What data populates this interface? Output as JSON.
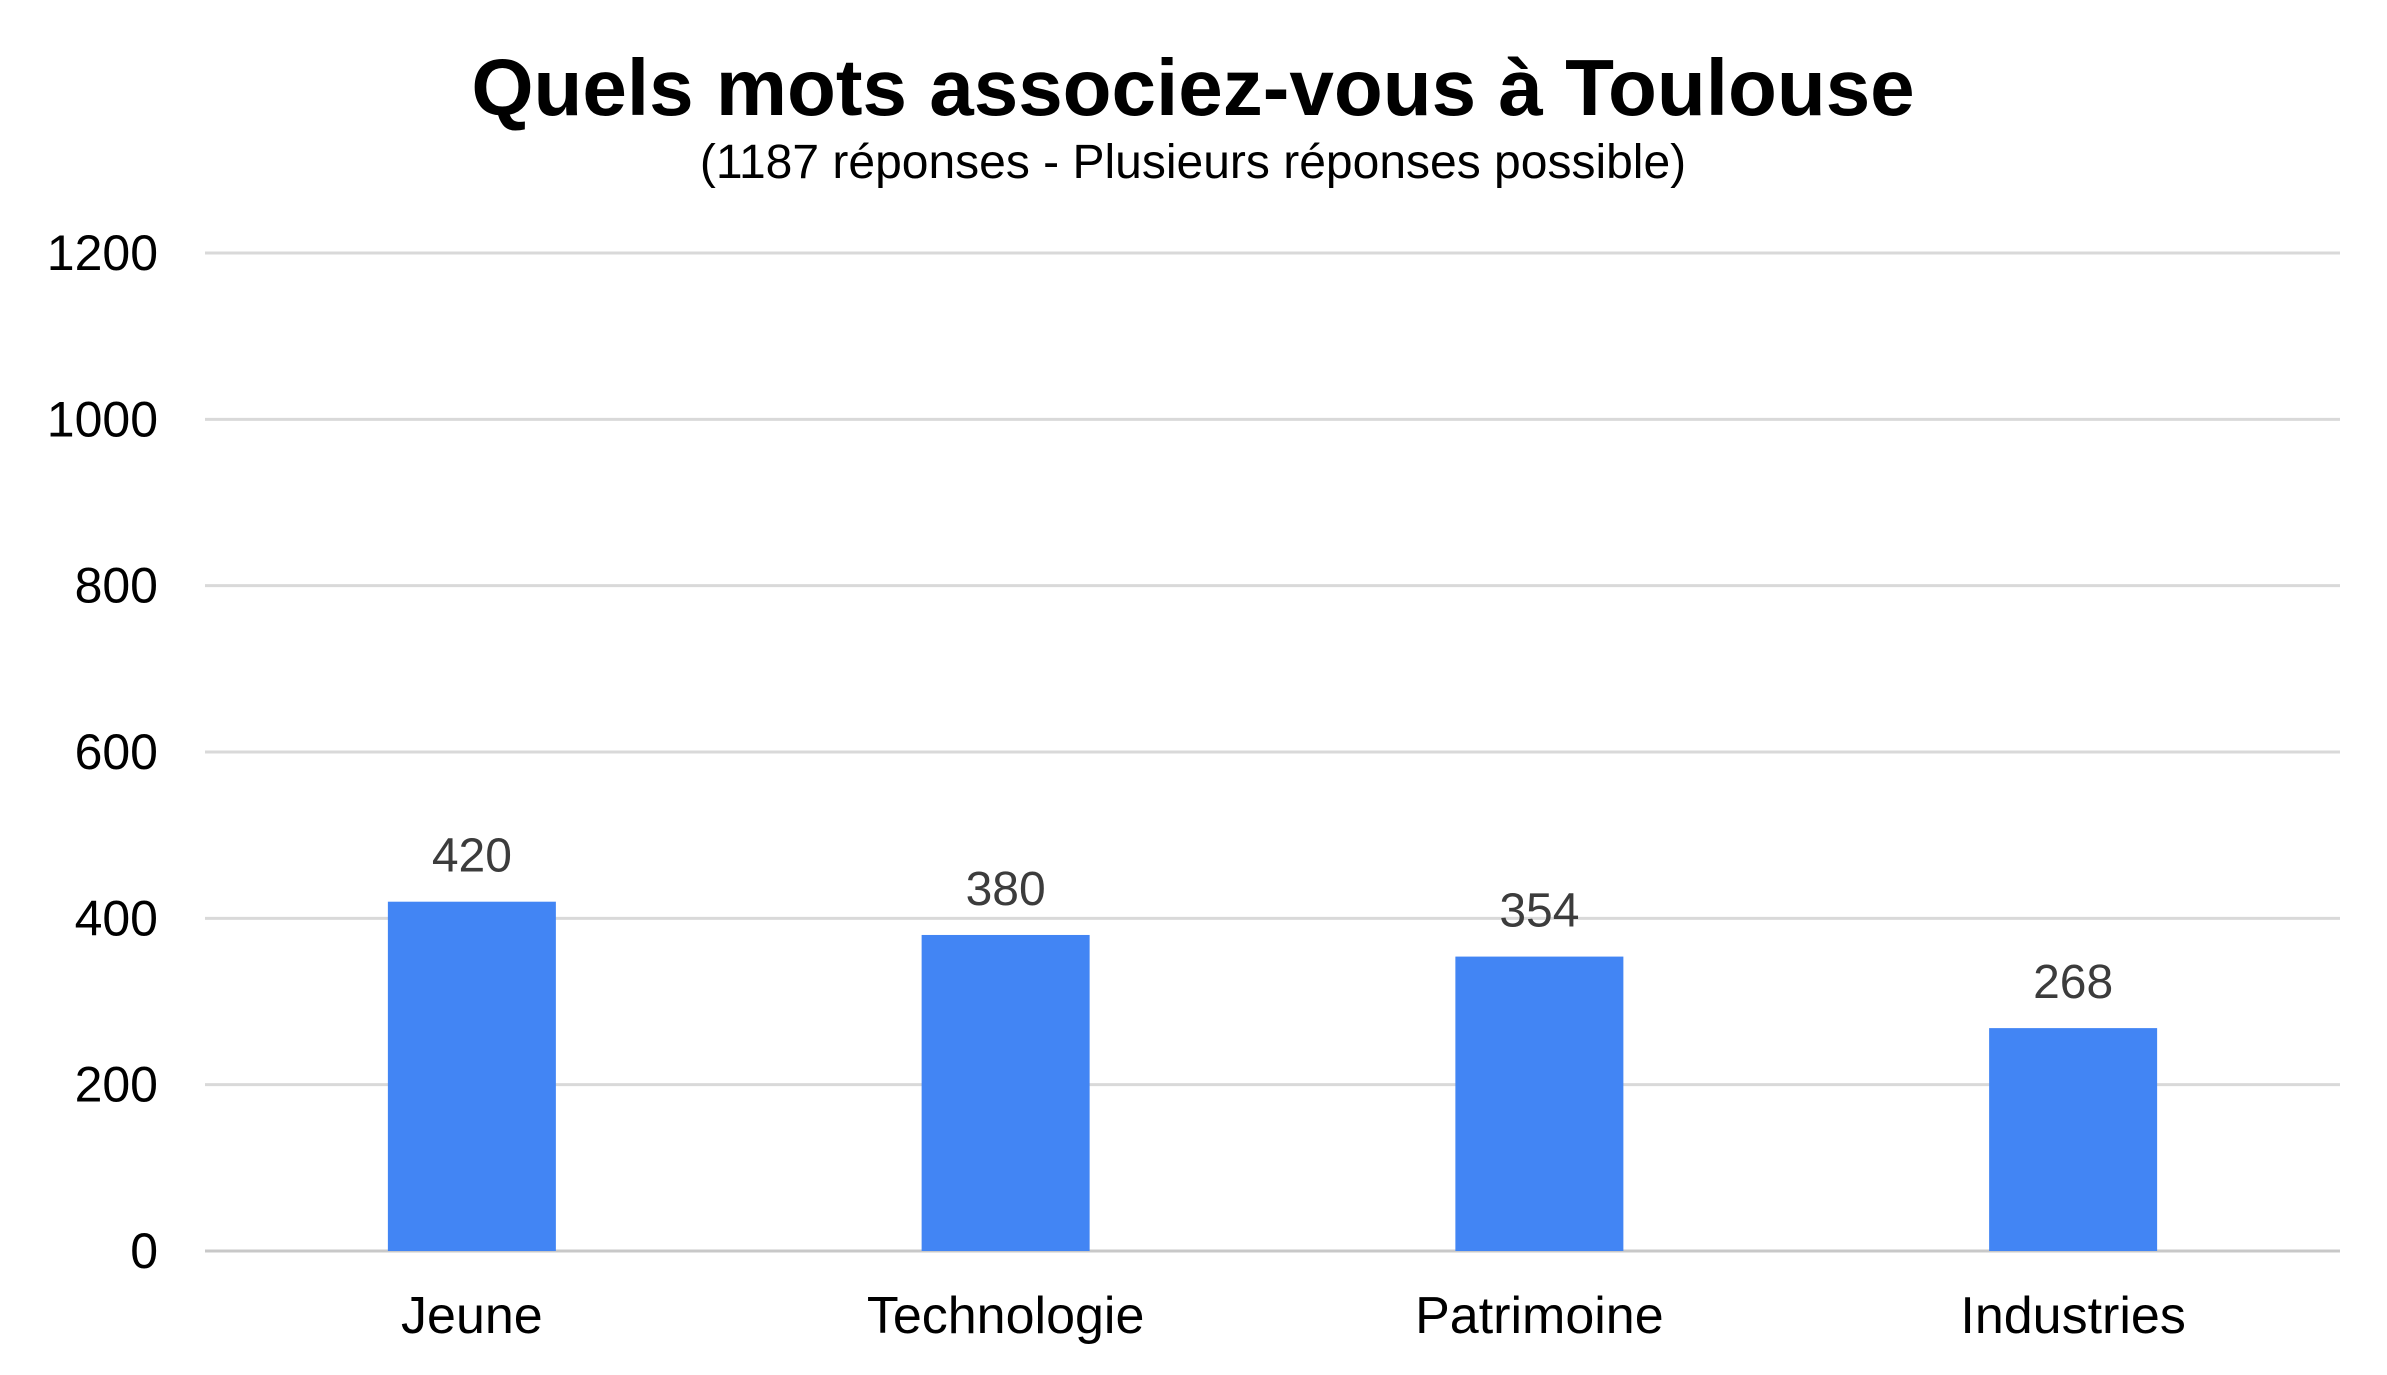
{
  "chart_data": {
    "type": "bar",
    "title": "Quels mots associez-vous à Toulouse",
    "subtitle": "(1187 réponses - Plusieurs réponses possible)",
    "categories": [
      "Jeune",
      "Technologie",
      "Patrimoine",
      "Industries"
    ],
    "values": [
      420,
      380,
      354,
      268
    ],
    "data_labels": [
      "420",
      "380",
      "354",
      "268"
    ],
    "ylim": [
      0,
      1200
    ],
    "y_ticks": [
      0,
      200,
      400,
      600,
      800,
      1000,
      1200
    ],
    "y_tick_labels": [
      "0",
      "200",
      "400",
      "600",
      "800",
      "1000",
      "1200"
    ],
    "xlabel": "",
    "ylabel": "",
    "grid": true,
    "legend": "none",
    "bar_color": "#4285f4"
  }
}
